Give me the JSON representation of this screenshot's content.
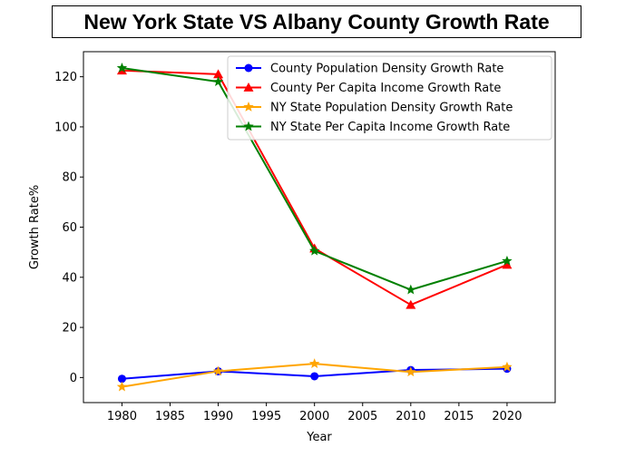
{
  "chart_data": {
    "type": "line",
    "title": "New York State VS Albany County Growth Rate",
    "xlabel": "Year",
    "ylabel": "Growth Rate%",
    "x": [
      1980,
      1990,
      2000,
      2010,
      2020
    ],
    "xlim": [
      1976,
      2025
    ],
    "ylim": [
      -10,
      130
    ],
    "xticks": [
      1980,
      1985,
      1990,
      1995,
      2000,
      2005,
      2010,
      2015,
      2020
    ],
    "yticks": [
      0,
      20,
      40,
      60,
      80,
      100,
      120
    ],
    "grid": false,
    "legend_position": "top-right",
    "series": [
      {
        "name": "County Population Density Growth Rate",
        "color": "#0000ff",
        "marker": "circle",
        "values": [
          -0.5,
          2.5,
          0.5,
          3.0,
          3.5
        ]
      },
      {
        "name": "County Per Capita Income Growth Rate",
        "color": "#ff0000",
        "marker": "triangle",
        "values": [
          122.5,
          121.0,
          51.5,
          29.0,
          45.0
        ]
      },
      {
        "name": "NY State Population Density Growth Rate",
        "color": "#ffa500",
        "marker": "star",
        "values": [
          -3.7,
          2.5,
          5.5,
          2.2,
          4.2
        ]
      },
      {
        "name": "NY State Per Capita Income Growth Rate",
        "color": "#008000",
        "marker": "star",
        "values": [
          123.5,
          118.0,
          50.5,
          35.0,
          46.5
        ]
      }
    ]
  }
}
